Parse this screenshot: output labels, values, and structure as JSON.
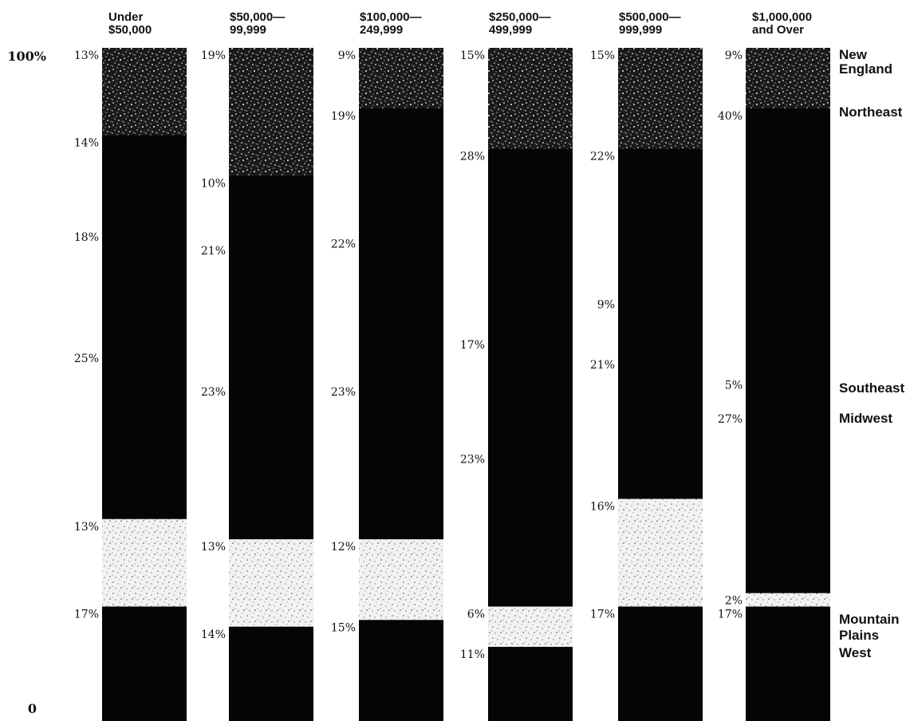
{
  "chart_data": {
    "type": "bar",
    "stacked": true,
    "ylim": [
      0,
      100
    ],
    "y_tick_labels": [
      "100%",
      "0"
    ],
    "categories": [
      [
        "Under",
        "$50,000"
      ],
      [
        "$50,000—",
        "99,999"
      ],
      [
        "$100,000—",
        "249,999"
      ],
      [
        "$250,000—",
        "499,999"
      ],
      [
        "$500,000—",
        "999,999"
      ],
      [
        "$1,000,000",
        "and Over"
      ]
    ],
    "series": [
      {
        "name": "New England",
        "label_lines": [
          "New",
          "England"
        ],
        "pattern": "speckle-dark",
        "values": [
          13,
          19,
          9,
          15,
          15,
          9
        ]
      },
      {
        "name": "Northeast",
        "pattern": "black",
        "values": [
          14,
          10,
          19,
          28,
          22,
          40
        ]
      },
      {
        "name": "Southeast",
        "pattern": "black",
        "values": [
          18,
          21,
          22,
          17,
          9,
          5
        ]
      },
      {
        "name": "Midwest",
        "pattern": "black",
        "values": [
          25,
          23,
          23,
          23,
          21,
          27
        ]
      },
      {
        "name": "Mountain",
        "pattern": "speckle-light",
        "values": [
          13,
          13,
          12,
          6,
          16,
          2
        ]
      },
      {
        "name": "Plains",
        "pattern": "black",
        "values": [
          17,
          14,
          15,
          11,
          17,
          17
        ]
      }
    ],
    "legend_extra": [
      "West"
    ],
    "value_labels": [
      [
        "13%",
        "14%",
        "18%",
        "25%",
        "13%",
        "17%"
      ],
      [
        "19%",
        "10%",
        "21%",
        "23%",
        "13%",
        "14%"
      ],
      [
        "9%",
        "19%",
        "22%",
        "23%",
        "12%",
        "15%"
      ],
      [
        "15%",
        "28%",
        "17%",
        "23%",
        "6%",
        "11%"
      ],
      [
        "15%",
        "22%",
        "9%",
        "21%",
        "16%",
        "17%"
      ],
      [
        "9%",
        "40%",
        "5%",
        "27%",
        "2%",
        "17%"
      ]
    ],
    "colors": {
      "black": "#050505",
      "speckle_dark_bg": "#1a1a1a",
      "speckle_light_bg": "#f2f2f2"
    }
  }
}
